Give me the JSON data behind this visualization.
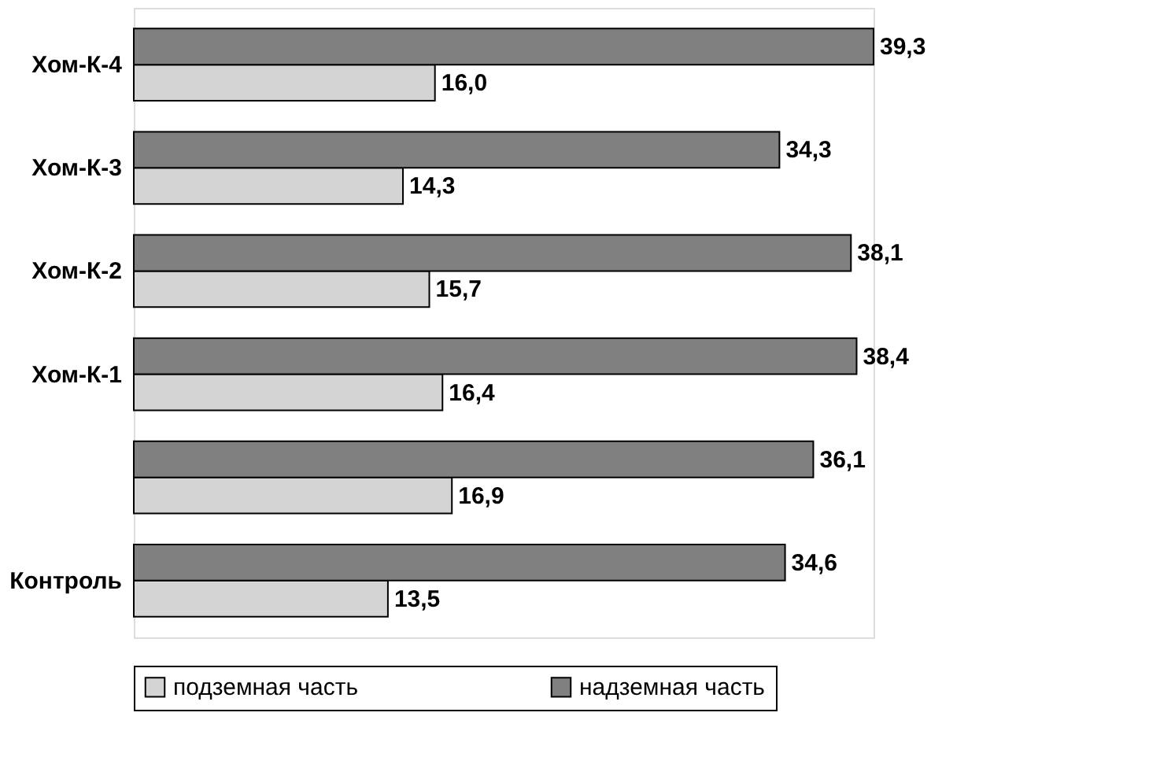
{
  "chart_data": {
    "type": "bar",
    "orientation": "horizontal",
    "categories": [
      "Хом-К-4",
      "Хом-К-3",
      "Хом-К-2",
      "Хом-К-1",
      null,
      "Контроль"
    ],
    "series": [
      {
        "name": "подземная часть",
        "color": "#d4d4d4",
        "values": [
          16.0,
          14.3,
          15.7,
          16.4,
          16.9,
          13.5
        ],
        "value_labels": [
          "16,0",
          "14,3",
          "15,7",
          "16,4",
          "16,9",
          "13,5"
        ]
      },
      {
        "name": "надземная часть",
        "color": "#808080",
        "values": [
          39.3,
          34.3,
          38.1,
          38.4,
          36.1,
          34.6
        ],
        "value_labels": [
          "39,3",
          "34,3",
          "38,1",
          "38,4",
          "36,1",
          "34,6"
        ]
      }
    ],
    "legend": "bottom"
  }
}
